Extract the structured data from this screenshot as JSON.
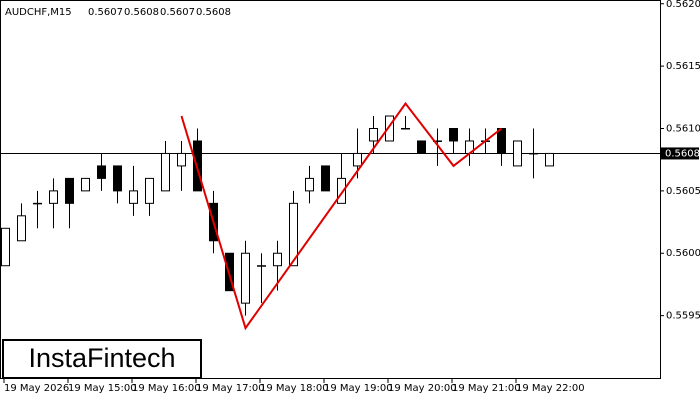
{
  "chart_data": {
    "type": "candlestick",
    "title": "AUDCHF,M15",
    "header_values": [
      0.5607,
      0.5608,
      0.5607,
      0.5608
    ],
    "watermark": "InstaFintech",
    "categories": [
      "19 May 2026",
      null,
      null,
      null,
      "19 May 15:00",
      null,
      null,
      null,
      "19 May 16:00",
      null,
      null,
      null,
      "19 May 17:00",
      null,
      null,
      null,
      "19 May 18:00",
      null,
      null,
      null,
      "19 May 19:00",
      null,
      null,
      null,
      "19 May 20:00",
      null,
      null,
      null,
      "19 May 21:00",
      null,
      null,
      null,
      "19 May 22:00",
      null,
      null
    ],
    "open": [
      0.5599,
      0.5601,
      0.5604,
      0.5604,
      0.5606,
      0.5605,
      0.5607,
      0.5607,
      0.5604,
      0.5604,
      0.5605,
      0.5607,
      0.5609,
      0.5604,
      0.56,
      0.5596,
      0.5599,
      0.5599,
      0.5599,
      0.5605,
      0.5607,
      0.5604,
      0.5607,
      0.5609,
      0.5609,
      0.561,
      0.5609,
      0.5609,
      0.561,
      0.5608,
      0.5609,
      0.561,
      0.5607,
      0.5608,
      0.5607
    ],
    "high": [
      0.5602,
      0.5604,
      0.5605,
      0.5606,
      0.5606,
      0.5606,
      0.5608,
      0.5607,
      0.5607,
      0.5606,
      0.5609,
      0.5609,
      0.561,
      0.5605,
      0.56,
      0.5601,
      0.56,
      0.5601,
      0.5605,
      0.5607,
      0.5607,
      0.5608,
      0.561,
      0.5611,
      0.5611,
      0.5611,
      0.5609,
      0.561,
      0.561,
      0.561,
      0.561,
      0.561,
      0.5609,
      0.561,
      0.5608
    ],
    "low": [
      0.5599,
      0.5601,
      0.5602,
      0.5602,
      0.5602,
      0.5605,
      0.5605,
      0.5604,
      0.5603,
      0.5603,
      0.5605,
      0.5605,
      0.5605,
      0.56,
      0.5597,
      0.5595,
      0.5596,
      0.5597,
      0.5599,
      0.5604,
      0.5605,
      0.5604,
      0.5606,
      0.5608,
      0.5609,
      0.561,
      0.5608,
      0.5607,
      0.5608,
      0.5607,
      0.5608,
      0.5607,
      0.5607,
      0.5606,
      0.5607
    ],
    "close": [
      0.5602,
      0.5603,
      0.5604,
      0.5605,
      0.5604,
      0.5606,
      0.5606,
      0.5605,
      0.5605,
      0.5606,
      0.5608,
      0.5608,
      0.5605,
      0.5601,
      0.5597,
      0.56,
      0.5599,
      0.56,
      0.5604,
      0.5606,
      0.5605,
      0.5606,
      0.5608,
      0.561,
      0.5611,
      0.561,
      0.5608,
      0.5609,
      0.5609,
      0.5609,
      0.5609,
      0.5608,
      0.5609,
      0.5608,
      0.5608
    ],
    "up_color": "#ffffff",
    "down_color": "#000000",
    "ylim": [
      0.559,
      0.56203
    ],
    "yticks": [
      {
        "value": 0.5595,
        "label": "0.5595"
      },
      {
        "value": 0.56,
        "label": "0.5600"
      },
      {
        "value": 0.5605,
        "label": "0.5605"
      },
      {
        "value": 0.561,
        "label": "0.5610"
      },
      {
        "value": 0.5615,
        "label": "0.5615"
      },
      {
        "value": 0.562,
        "label": "0.5620"
      }
    ],
    "current_price": {
      "value": 0.5608,
      "label": "0.5608"
    },
    "pattern": {
      "color": "#e00000",
      "index": [
        11,
        15,
        25,
        28,
        31
      ],
      "price": [
        0.5611,
        0.5594,
        0.5612,
        0.5607,
        0.561
      ]
    }
  }
}
